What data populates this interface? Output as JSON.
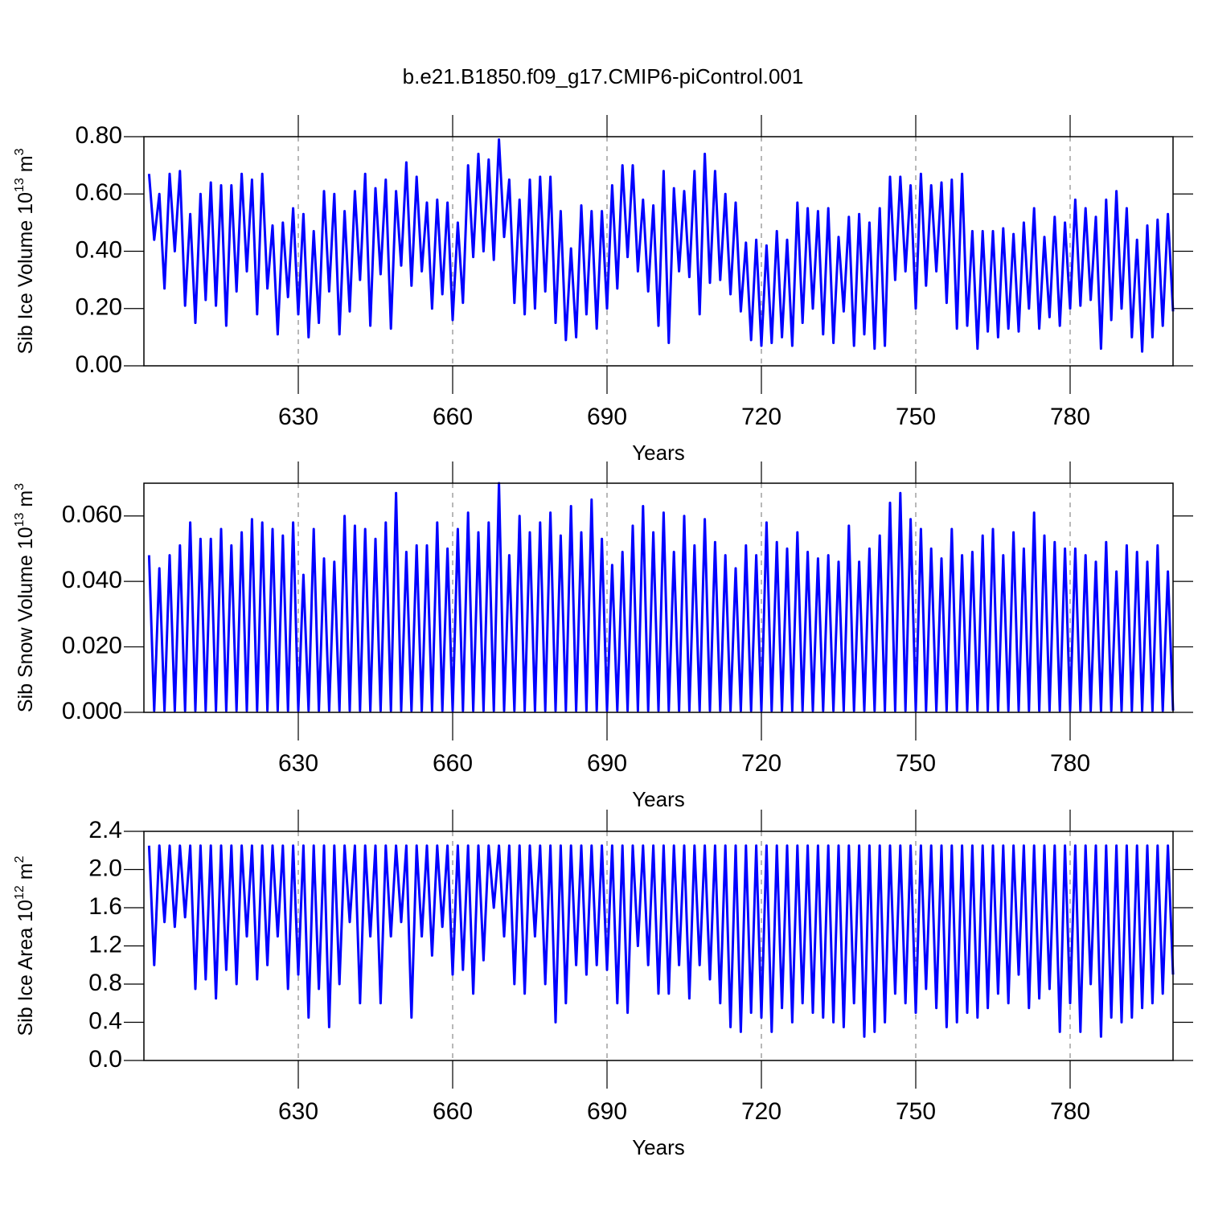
{
  "title": "b.e21.B1850.f09_g17.CMIP6-piControl.001",
  "chart_data": [
    {
      "type": "line",
      "xlabel": "Years",
      "ylabel": [
        "Sib Ice Volume 10",
        "13",
        " m",
        "3"
      ],
      "xlim": [
        600,
        800
      ],
      "xticks": [
        630,
        660,
        690,
        720,
        750,
        780
      ],
      "x_grid": true,
      "ylim": [
        0,
        0.8
      ],
      "yticks": [
        {
          "value": 0,
          "label": "0.00"
        },
        {
          "value": 0.2,
          "label": "0.20"
        },
        {
          "value": 0.4,
          "label": "0.40"
        },
        {
          "value": 0.6,
          "label": "0.60"
        },
        {
          "value": 0.8,
          "label": "0.80"
        }
      ],
      "color": "#0000ff",
      "x": [
        601,
        602,
        603,
        604,
        605,
        606,
        607,
        608,
        609,
        610,
        611,
        612,
        613,
        614,
        615,
        616,
        617,
        618,
        619,
        620,
        621,
        622,
        623,
        624,
        625,
        626,
        627,
        628,
        629,
        630,
        631,
        632,
        633,
        634,
        635,
        636,
        637,
        638,
        639,
        640,
        641,
        642,
        643,
        644,
        645,
        646,
        647,
        648,
        649,
        650,
        651,
        652,
        653,
        654,
        655,
        656,
        657,
        658,
        659,
        660,
        661,
        662,
        663,
        664,
        665,
        666,
        667,
        668,
        669,
        670,
        671,
        672,
        673,
        674,
        675,
        676,
        677,
        678,
        679,
        680,
        681,
        682,
        683,
        684,
        685,
        686,
        687,
        688,
        689,
        690,
        691,
        692,
        693,
        694,
        695,
        696,
        697,
        698,
        699,
        700,
        701,
        702,
        703,
        704,
        705,
        706,
        707,
        708,
        709,
        710,
        711,
        712,
        713,
        714,
        715,
        716,
        717,
        718,
        719,
        720,
        721,
        722,
        723,
        724,
        725,
        726,
        727,
        728,
        729,
        730,
        731,
        732,
        733,
        734,
        735,
        736,
        737,
        738,
        739,
        740,
        741,
        742,
        743,
        744,
        745,
        746,
        747,
        748,
        749,
        750,
        751,
        752,
        753,
        754,
        755,
        756,
        757,
        758,
        759,
        760,
        761,
        762,
        763,
        764,
        765,
        766,
        767,
        768,
        769,
        770,
        771,
        772,
        773,
        774,
        775,
        776,
        777,
        778,
        779,
        780,
        781,
        782,
        783,
        784,
        785,
        786,
        787,
        788,
        789,
        790,
        791,
        792,
        793,
        794,
        795,
        796,
        797,
        798,
        799,
        800
      ],
      "values": [
        0.67,
        0.44,
        0.6,
        0.27,
        0.67,
        0.4,
        0.68,
        0.21,
        0.53,
        0.15,
        0.6,
        0.23,
        0.64,
        0.21,
        0.63,
        0.14,
        0.63,
        0.26,
        0.67,
        0.33,
        0.65,
        0.18,
        0.67,
        0.27,
        0.49,
        0.11,
        0.5,
        0.24,
        0.55,
        0.18,
        0.53,
        0.1,
        0.47,
        0.15,
        0.61,
        0.26,
        0.6,
        0.11,
        0.54,
        0.19,
        0.61,
        0.3,
        0.67,
        0.14,
        0.62,
        0.32,
        0.65,
        0.13,
        0.61,
        0.35,
        0.71,
        0.28,
        0.66,
        0.33,
        0.57,
        0.2,
        0.58,
        0.25,
        0.57,
        0.16,
        0.5,
        0.22,
        0.7,
        0.38,
        0.74,
        0.4,
        0.72,
        0.37,
        0.79,
        0.45,
        0.65,
        0.22,
        0.58,
        0.18,
        0.65,
        0.2,
        0.66,
        0.26,
        0.66,
        0.15,
        0.54,
        0.09,
        0.41,
        0.1,
        0.56,
        0.18,
        0.54,
        0.13,
        0.54,
        0.2,
        0.63,
        0.27,
        0.7,
        0.38,
        0.7,
        0.33,
        0.58,
        0.26,
        0.56,
        0.14,
        0.68,
        0.08,
        0.62,
        0.33,
        0.61,
        0.31,
        0.68,
        0.18,
        0.74,
        0.29,
        0.68,
        0.3,
        0.6,
        0.25,
        0.57,
        0.19,
        0.43,
        0.09,
        0.44,
        0.07,
        0.42,
        0.08,
        0.47,
        0.1,
        0.44,
        0.07,
        0.57,
        0.15,
        0.55,
        0.2,
        0.54,
        0.11,
        0.55,
        0.08,
        0.45,
        0.19,
        0.52,
        0.07,
        0.53,
        0.11,
        0.5,
        0.06,
        0.55,
        0.07,
        0.66,
        0.3,
        0.66,
        0.33,
        0.63,
        0.2,
        0.67,
        0.28,
        0.63,
        0.33,
        0.64,
        0.22,
        0.65,
        0.13,
        0.67,
        0.14,
        0.47,
        0.06,
        0.47,
        0.12,
        0.47,
        0.1,
        0.48,
        0.13,
        0.46,
        0.12,
        0.5,
        0.2,
        0.55,
        0.13,
        0.45,
        0.17,
        0.52,
        0.14,
        0.5,
        0.2,
        0.58,
        0.21,
        0.55,
        0.23,
        0.52,
        0.06,
        0.58,
        0.16,
        0.61,
        0.2,
        0.55,
        0.1,
        0.44,
        0.05,
        0.49,
        0.1,
        0.51,
        0.14,
        0.53,
        0.19
      ]
    },
    {
      "type": "line",
      "xlabel": "Years",
      "ylabel": [
        "Sib Snow Volume 10",
        "13",
        " m",
        "3"
      ],
      "xlim": [
        600,
        800
      ],
      "xticks": [
        630,
        660,
        690,
        720,
        750,
        780
      ],
      "x_grid": true,
      "ylim": [
        0,
        0.07
      ],
      "yticks": [
        {
          "value": 0,
          "label": "0.000"
        },
        {
          "value": 0.02,
          "label": "0.020"
        },
        {
          "value": 0.04,
          "label": "0.040"
        },
        {
          "value": 0.06,
          "label": "0.060"
        }
      ],
      "color": "#0000ff",
      "x": [
        601,
        602,
        603,
        604,
        605,
        606,
        607,
        608,
        609,
        610,
        611,
        612,
        613,
        614,
        615,
        616,
        617,
        618,
        619,
        620,
        621,
        622,
        623,
        624,
        625,
        626,
        627,
        628,
        629,
        630,
        631,
        632,
        633,
        634,
        635,
        636,
        637,
        638,
        639,
        640,
        641,
        642,
        643,
        644,
        645,
        646,
        647,
        648,
        649,
        650,
        651,
        652,
        653,
        654,
        655,
        656,
        657,
        658,
        659,
        660,
        661,
        662,
        663,
        664,
        665,
        666,
        667,
        668,
        669,
        670,
        671,
        672,
        673,
        674,
        675,
        676,
        677,
        678,
        679,
        680,
        681,
        682,
        683,
        684,
        685,
        686,
        687,
        688,
        689,
        690,
        691,
        692,
        693,
        694,
        695,
        696,
        697,
        698,
        699,
        700,
        701,
        702,
        703,
        704,
        705,
        706,
        707,
        708,
        709,
        710,
        711,
        712,
        713,
        714,
        715,
        716,
        717,
        718,
        719,
        720,
        721,
        722,
        723,
        724,
        725,
        726,
        727,
        728,
        729,
        730,
        731,
        732,
        733,
        734,
        735,
        736,
        737,
        738,
        739,
        740,
        741,
        742,
        743,
        744,
        745,
        746,
        747,
        748,
        749,
        750,
        751,
        752,
        753,
        754,
        755,
        756,
        757,
        758,
        759,
        760,
        761,
        762,
        763,
        764,
        765,
        766,
        767,
        768,
        769,
        770,
        771,
        772,
        773,
        774,
        775,
        776,
        777,
        778,
        779,
        780,
        781,
        782,
        783,
        784,
        785,
        786,
        787,
        788,
        789,
        790,
        791,
        792,
        793,
        794,
        795,
        796,
        797,
        798,
        799,
        800
      ],
      "values": [
        0.048,
        0.0005,
        0.044,
        0.0005,
        0.048,
        0.0005,
        0.051,
        0.0005,
        0.058,
        0.0005,
        0.053,
        0.0005,
        0.053,
        0.0005,
        0.056,
        0.0005,
        0.051,
        0.0005,
        0.055,
        0.0005,
        0.059,
        0.0005,
        0.058,
        0.0005,
        0.056,
        0.0005,
        0.054,
        0.0005,
        0.058,
        0.0005,
        0.042,
        0.0005,
        0.056,
        0.0005,
        0.047,
        0.0005,
        0.046,
        0.0005,
        0.06,
        0.0005,
        0.057,
        0.0005,
        0.056,
        0.0005,
        0.053,
        0.0005,
        0.058,
        0.0005,
        0.067,
        0.0005,
        0.049,
        0.0005,
        0.051,
        0.0005,
        0.051,
        0.0005,
        0.058,
        0.0005,
        0.05,
        0.0005,
        0.056,
        0.0005,
        0.061,
        0.0005,
        0.055,
        0.0005,
        0.058,
        0.0005,
        0.07,
        0.0005,
        0.048,
        0.0005,
        0.06,
        0.0005,
        0.055,
        0.0005,
        0.058,
        0.0005,
        0.061,
        0.0005,
        0.054,
        0.0005,
        0.063,
        0.0005,
        0.055,
        0.0005,
        0.065,
        0.0005,
        0.053,
        0.0005,
        0.045,
        0.0005,
        0.049,
        0.0005,
        0.057,
        0.0005,
        0.063,
        0.0005,
        0.055,
        0.0005,
        0.061,
        0.0005,
        0.049,
        0.0005,
        0.06,
        0.0005,
        0.051,
        0.0005,
        0.059,
        0.0005,
        0.052,
        0.0005,
        0.048,
        0.0005,
        0.044,
        0.0005,
        0.051,
        0.0005,
        0.048,
        0.0005,
        0.058,
        0.0005,
        0.052,
        0.0005,
        0.05,
        0.0005,
        0.055,
        0.0005,
        0.049,
        0.0005,
        0.047,
        0.0005,
        0.048,
        0.0005,
        0.046,
        0.0005,
        0.057,
        0.0005,
        0.046,
        0.0005,
        0.05,
        0.0005,
        0.054,
        0.0005,
        0.064,
        0.0005,
        0.067,
        0.0005,
        0.059,
        0.0005,
        0.056,
        0.0005,
        0.05,
        0.0005,
        0.047,
        0.0005,
        0.056,
        0.0005,
        0.048,
        0.0005,
        0.049,
        0.0005,
        0.054,
        0.0005,
        0.056,
        0.0005,
        0.048,
        0.0005,
        0.055,
        0.0005,
        0.05,
        0.0005,
        0.061,
        0.0005,
        0.054,
        0.0005,
        0.052,
        0.0005,
        0.05,
        0.0005,
        0.05,
        0.0005,
        0.048,
        0.0005,
        0.046,
        0.0005,
        0.052,
        0.0005,
        0.043,
        0.0005,
        0.051,
        0.0005,
        0.049,
        0.0005,
        0.046,
        0.0005,
        0.051,
        0.0005,
        0.043,
        0.0005
      ]
    },
    {
      "type": "line",
      "xlabel": "Years",
      "ylabel": [
        "Sib Ice Area 10",
        "12",
        " m",
        "2"
      ],
      "xlim": [
        600,
        800
      ],
      "xticks": [
        630,
        660,
        690,
        720,
        750,
        780
      ],
      "x_grid": true,
      "ylim": [
        0,
        2.4
      ],
      "yticks": [
        {
          "value": 0,
          "label": "0.0"
        },
        {
          "value": 0.4,
          "label": "0.4"
        },
        {
          "value": 0.8,
          "label": "0.8"
        },
        {
          "value": 1.2,
          "label": "1.2"
        },
        {
          "value": 1.6,
          "label": "1.6"
        },
        {
          "value": 2,
          "label": "2.0"
        },
        {
          "value": 2.4,
          "label": "2.4"
        }
      ],
      "color": "#0000ff",
      "x": [
        601,
        602,
        603,
        604,
        605,
        606,
        607,
        608,
        609,
        610,
        611,
        612,
        613,
        614,
        615,
        616,
        617,
        618,
        619,
        620,
        621,
        622,
        623,
        624,
        625,
        626,
        627,
        628,
        629,
        630,
        631,
        632,
        633,
        634,
        635,
        636,
        637,
        638,
        639,
        640,
        641,
        642,
        643,
        644,
        645,
        646,
        647,
        648,
        649,
        650,
        651,
        652,
        653,
        654,
        655,
        656,
        657,
        658,
        659,
        660,
        661,
        662,
        663,
        664,
        665,
        666,
        667,
        668,
        669,
        670,
        671,
        672,
        673,
        674,
        675,
        676,
        677,
        678,
        679,
        680,
        681,
        682,
        683,
        684,
        685,
        686,
        687,
        688,
        689,
        690,
        691,
        692,
        693,
        694,
        695,
        696,
        697,
        698,
        699,
        700,
        701,
        702,
        703,
        704,
        705,
        706,
        707,
        708,
        709,
        710,
        711,
        712,
        713,
        714,
        715,
        716,
        717,
        718,
        719,
        720,
        721,
        722,
        723,
        724,
        725,
        726,
        727,
        728,
        729,
        730,
        731,
        732,
        733,
        734,
        735,
        736,
        737,
        738,
        739,
        740,
        741,
        742,
        743,
        744,
        745,
        746,
        747,
        748,
        749,
        750,
        751,
        752,
        753,
        754,
        755,
        756,
        757,
        758,
        759,
        760,
        761,
        762,
        763,
        764,
        765,
        766,
        767,
        768,
        769,
        770,
        771,
        772,
        773,
        774,
        775,
        776,
        777,
        778,
        779,
        780,
        781,
        782,
        783,
        784,
        785,
        786,
        787,
        788,
        789,
        790,
        791,
        792,
        793,
        794,
        795,
        796,
        797,
        798,
        799,
        800
      ],
      "values": [
        2.25,
        1.0,
        2.25,
        1.45,
        2.25,
        1.4,
        2.25,
        1.5,
        2.25,
        0.75,
        2.25,
        0.85,
        2.25,
        0.65,
        2.25,
        0.95,
        2.25,
        0.8,
        2.25,
        1.3,
        2.25,
        0.85,
        2.25,
        1.0,
        2.25,
        1.3,
        2.25,
        0.75,
        2.25,
        0.9,
        2.25,
        0.45,
        2.25,
        0.75,
        2.25,
        0.35,
        2.25,
        0.8,
        2.25,
        1.45,
        2.25,
        0.6,
        2.25,
        1.3,
        2.25,
        0.6,
        2.25,
        1.3,
        2.25,
        1.45,
        2.25,
        0.45,
        2.25,
        1.3,
        2.25,
        1.1,
        2.25,
        1.4,
        2.25,
        0.9,
        2.25,
        0.95,
        2.25,
        0.7,
        2.25,
        1.05,
        2.25,
        1.6,
        2.25,
        1.3,
        2.25,
        0.8,
        2.25,
        0.7,
        2.25,
        1.3,
        2.25,
        0.8,
        2.25,
        0.4,
        2.25,
        0.6,
        2.25,
        1.0,
        2.25,
        0.9,
        2.25,
        1.0,
        2.25,
        0.95,
        2.25,
        0.6,
        2.25,
        0.5,
        2.25,
        1.2,
        2.25,
        1.0,
        2.25,
        0.7,
        2.25,
        0.7,
        2.25,
        1.0,
        2.25,
        0.65,
        2.25,
        1.0,
        2.25,
        0.85,
        2.25,
        0.6,
        2.25,
        0.35,
        2.25,
        0.3,
        2.25,
        0.5,
        2.25,
        0.45,
        2.25,
        0.3,
        2.25,
        0.55,
        2.25,
        0.4,
        2.25,
        0.6,
        2.25,
        0.5,
        2.25,
        0.45,
        2.25,
        0.4,
        2.25,
        0.35,
        2.25,
        0.6,
        2.25,
        0.25,
        2.25,
        0.3,
        2.25,
        0.4,
        2.25,
        0.7,
        2.25,
        0.6,
        2.25,
        0.5,
        2.25,
        0.75,
        2.25,
        0.55,
        2.25,
        0.35,
        2.25,
        0.4,
        2.25,
        0.5,
        2.25,
        0.45,
        2.25,
        0.55,
        2.25,
        0.7,
        2.25,
        0.6,
        2.25,
        0.9,
        2.25,
        0.55,
        2.25,
        0.65,
        2.25,
        0.75,
        2.25,
        0.3,
        2.25,
        0.6,
        2.25,
        0.3,
        2.25,
        0.8,
        2.25,
        0.25,
        2.25,
        0.45,
        2.25,
        0.4,
        2.25,
        0.45,
        2.25,
        0.55,
        2.25,
        0.6,
        2.25,
        0.7,
        2.25,
        0.9
      ]
    }
  ]
}
